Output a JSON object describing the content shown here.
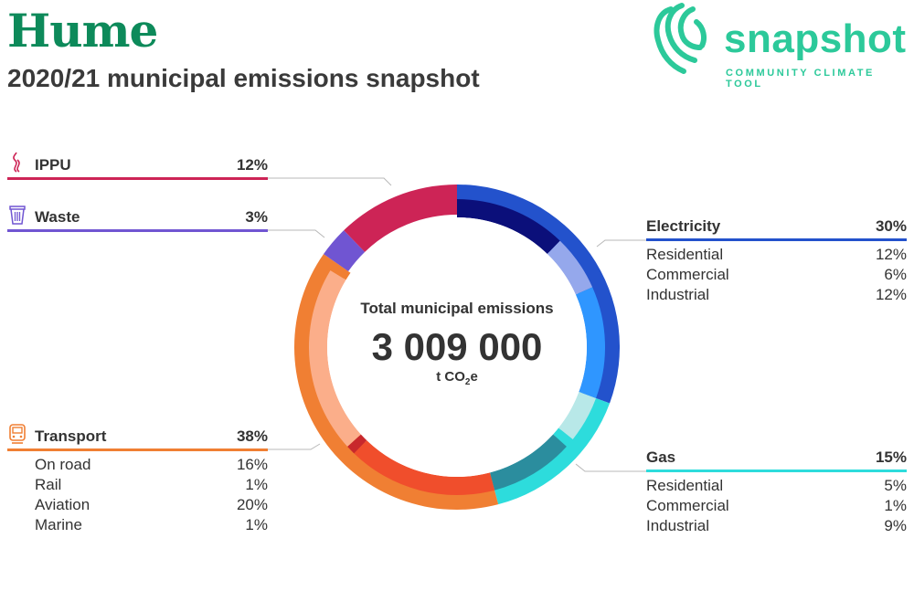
{
  "header": {
    "title": "Hume",
    "subtitle": "2020/21 municipal emissions snapshot"
  },
  "logo": {
    "word": "snapshot",
    "tagline": "COMMUNITY CLIMATE TOOL",
    "icon": "snapshot-swirl-icon",
    "color": "#2cc99a"
  },
  "center": {
    "title": "Total municipal emissions",
    "value": "3 009 000",
    "unit_prefix": "t CO",
    "unit_sub": "2",
    "unit_suffix": "e"
  },
  "chart_data": {
    "type": "pie",
    "variant": "double-ring donut",
    "title": "Total municipal emissions",
    "total": 3009000,
    "unit": "t CO2e",
    "series": [
      {
        "name": "Electricity",
        "value": 30,
        "color": "#2352cc",
        "icon": "lightning-icon",
        "subs": [
          {
            "name": "Residential",
            "value": 12,
            "color": "#0b0f7a"
          },
          {
            "name": "Commercial",
            "value": 6,
            "color": "#95a8ec"
          },
          {
            "name": "Industrial",
            "value": 12,
            "color": "#2f96ff"
          }
        ]
      },
      {
        "name": "Gas",
        "value": 15,
        "color": "#2ddcdc",
        "icon": "flame-icon",
        "subs": [
          {
            "name": "Residential",
            "value": 5,
            "color": "#b8e8e8"
          },
          {
            "name": "Commercial",
            "value": 1,
            "color": "#2ddcdc"
          },
          {
            "name": "Industrial",
            "value": 9,
            "color": "#2b8d9e"
          }
        ]
      },
      {
        "name": "Transport",
        "value": 38,
        "color": "#f07f33",
        "icon": "train-icon",
        "subs": [
          {
            "name": "On road",
            "value": 16,
            "color": "#f04e2c"
          },
          {
            "name": "Rail",
            "value": 1,
            "color": "#c8282c"
          },
          {
            "name": "Aviation",
            "value": 20,
            "color": "#fbae8a"
          },
          {
            "name": "Marine",
            "value": 1,
            "color": "#f07f33"
          }
        ]
      },
      {
        "name": "Waste",
        "value": 3,
        "color": "#7055d2",
        "icon": "trash-bin-icon",
        "subs": []
      },
      {
        "name": "IPPU",
        "value": 12,
        "color": "#cd2456",
        "icon": "smoke-icon",
        "subs": []
      }
    ],
    "legend_labels": {
      "electricity": {
        "name": "Electricity",
        "pct": "30%",
        "subs": [
          [
            "Residential",
            "12%"
          ],
          [
            "Commercial",
            "6%"
          ],
          [
            "Industrial",
            "12%"
          ]
        ]
      },
      "gas": {
        "name": "Gas",
        "pct": "15%",
        "subs": [
          [
            "Residential",
            "5%"
          ],
          [
            "Commercial",
            "1%"
          ],
          [
            "Industrial",
            "9%"
          ]
        ]
      },
      "transport": {
        "name": "Transport",
        "pct": "38%",
        "subs": [
          [
            "On road",
            "16%"
          ],
          [
            "Rail",
            "1%"
          ],
          [
            "Aviation",
            "20%"
          ],
          [
            "Marine",
            "1%"
          ]
        ]
      },
      "waste": {
        "name": "Waste",
        "pct": "3%"
      },
      "ippu": {
        "name": "IPPU",
        "pct": "12%"
      }
    }
  }
}
